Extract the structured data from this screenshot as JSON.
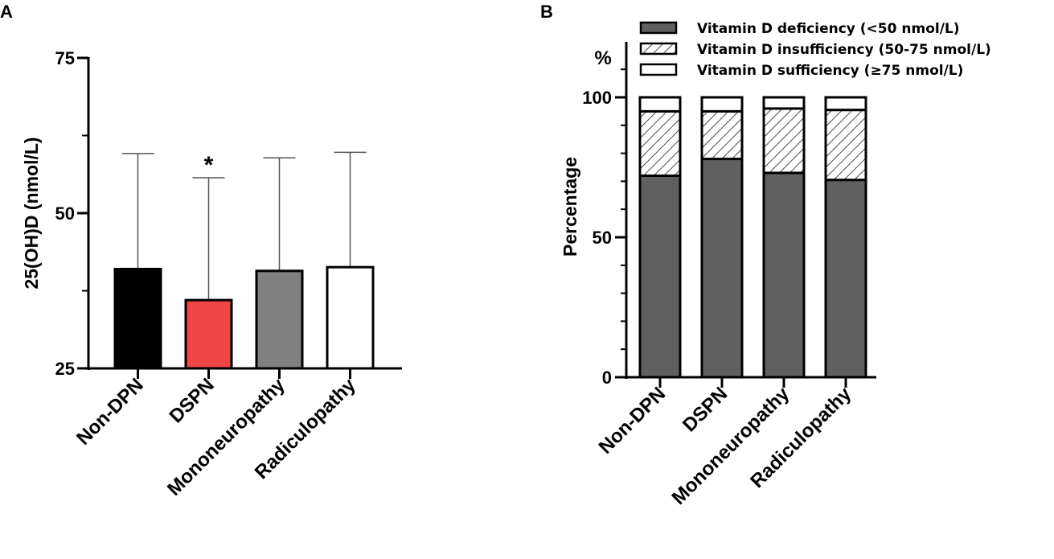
{
  "chart_data": [
    {
      "panel": "A",
      "type": "bar",
      "ylabel": "25(OH)D (nmol/L)",
      "ylim": [
        25,
        75
      ],
      "yticks": [
        "25",
        "50",
        "75"
      ],
      "categories": [
        "Non-DPN",
        "DSPN",
        "Mononeuropathy",
        "Radiculopathy"
      ],
      "values": [
        41.0,
        36.0,
        40.7,
        41.3
      ],
      "error_upper": [
        59.6,
        55.7,
        58.9,
        59.8
      ],
      "fills": [
        "#000000",
        "#f24545",
        "#808080",
        "#ffffff"
      ],
      "annotation": {
        "text": "*",
        "category": "DSPN"
      }
    },
    {
      "panel": "B",
      "type": "bar",
      "stacked": true,
      "ylabel": "Percentage",
      "unit_label": "%",
      "ylim": [
        0,
        100
      ],
      "yticks": [
        "0",
        "50",
        "100"
      ],
      "categories": [
        "Non-DPN",
        "DSPN",
        "Mononeuropathy",
        "Radiculopathy"
      ],
      "series": [
        {
          "name": "Vitamin D deficiency (<50 nmol/L)",
          "values": [
            72,
            78,
            73,
            70.5
          ],
          "fill": "#606060"
        },
        {
          "name": "Vitamin D insufficiency (50-75 nmol/L)",
          "values": [
            23,
            17,
            23,
            25
          ],
          "fill": "hatch"
        },
        {
          "name": "Vitamin D sufficiency (≥75 nmol/L)",
          "values": [
            5,
            5,
            4,
            4.5
          ],
          "fill": "#ffffff"
        }
      ],
      "legend_position": "top-right"
    }
  ],
  "panels": {
    "a": "A",
    "b": "B"
  }
}
